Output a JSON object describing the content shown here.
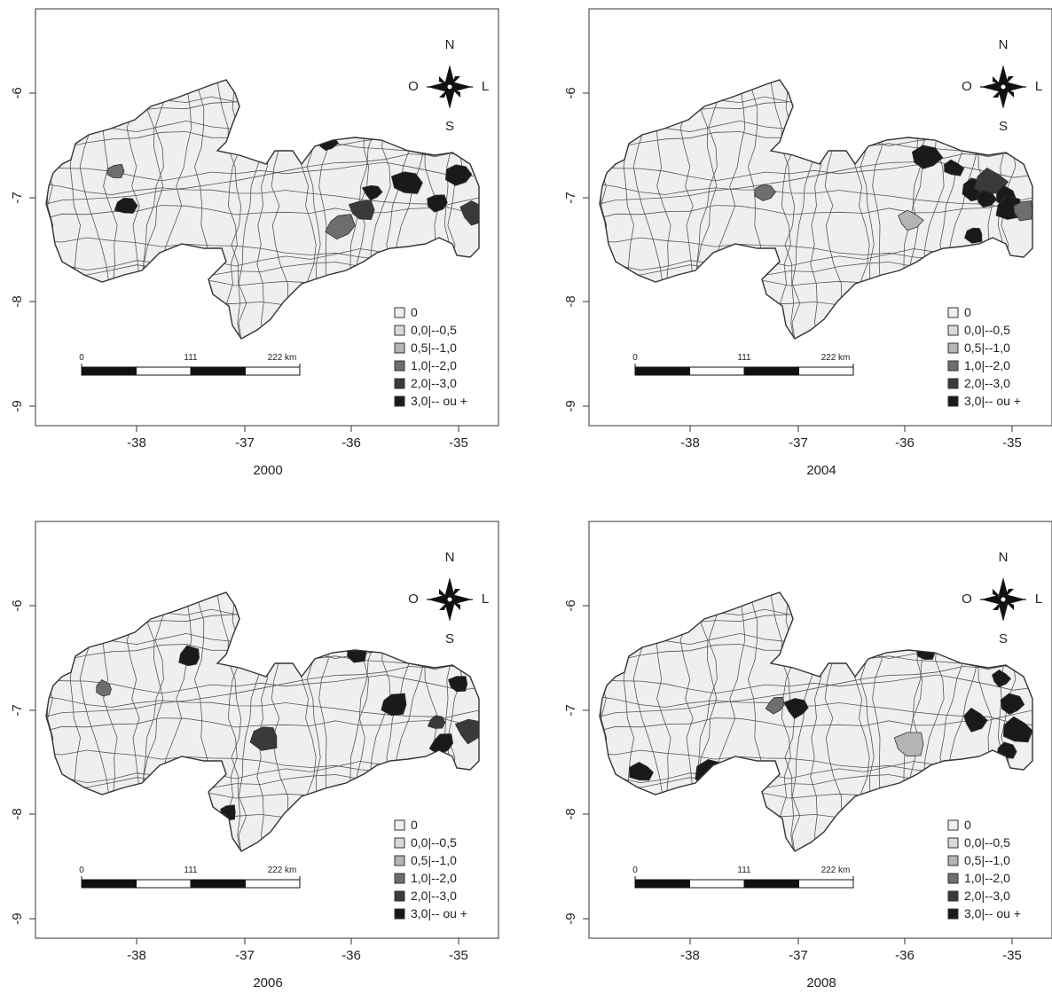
{
  "compass": {
    "north": "N",
    "south": "S",
    "west": "O",
    "east": "L"
  },
  "scale_bar": {
    "ticks": [
      "0",
      "111",
      "222 km"
    ]
  },
  "legend": {
    "classes": [
      {
        "label": "0",
        "color": "#efefef"
      },
      {
        "label": "0,0|--0,5",
        "color": "#d9d9d9"
      },
      {
        "label": "0,5|--1,0",
        "color": "#b4b4b4"
      },
      {
        "label": "1,0|--2,0",
        "color": "#6e6e6e"
      },
      {
        "label": "2,0|--3,0",
        "color": "#3a3a3a"
      },
      {
        "label": "3,0|-- ou +",
        "color": "#1a1a1a"
      }
    ]
  },
  "axes": {
    "x_ticks": [
      "-38",
      "-37",
      "-36",
      "-35"
    ],
    "y_ticks": [
      "-6",
      "-7",
      "-8",
      "-9"
    ]
  },
  "panels": [
    {
      "year": "2000",
      "highlights": [
        {
          "lon": -38.2,
          "lat": -6.75,
          "cls": 3
        },
        {
          "lon": -38.1,
          "lat": -7.08,
          "cls": 5
        },
        {
          "lon": -36.1,
          "lat": -7.27,
          "cls": 3
        },
        {
          "lon": -35.8,
          "lat": -6.95,
          "cls": 5
        },
        {
          "lon": -35.9,
          "lat": -7.12,
          "cls": 4
        },
        {
          "lon": -35.48,
          "lat": -6.86,
          "cls": 5
        },
        {
          "lon": -35.2,
          "lat": -7.05,
          "cls": 5
        },
        {
          "lon": -35.0,
          "lat": -6.78,
          "cls": 5
        },
        {
          "lon": -34.85,
          "lat": -7.15,
          "cls": 4
        },
        {
          "lon": -36.22,
          "lat": -6.48,
          "cls": 5
        }
      ]
    },
    {
      "year": "2004",
      "highlights": [
        {
          "lon": -37.3,
          "lat": -6.95,
          "cls": 3
        },
        {
          "lon": -35.95,
          "lat": -7.22,
          "cls": 2
        },
        {
          "lon": -35.8,
          "lat": -6.62,
          "cls": 5
        },
        {
          "lon": -35.55,
          "lat": -6.72,
          "cls": 5
        },
        {
          "lon": -35.35,
          "lat": -6.92,
          "cls": 5
        },
        {
          "lon": -35.2,
          "lat": -6.85,
          "cls": 4
        },
        {
          "lon": -35.25,
          "lat": -7.02,
          "cls": 5
        },
        {
          "lon": -35.05,
          "lat": -7.0,
          "cls": 5
        },
        {
          "lon": -35.02,
          "lat": -7.12,
          "cls": 5
        },
        {
          "lon": -35.35,
          "lat": -7.35,
          "cls": 5
        },
        {
          "lon": -34.9,
          "lat": -7.12,
          "cls": 3
        }
      ]
    },
    {
      "year": "2006",
      "highlights": [
        {
          "lon": -38.3,
          "lat": -6.8,
          "cls": 3
        },
        {
          "lon": -37.5,
          "lat": -6.5,
          "cls": 5
        },
        {
          "lon": -36.8,
          "lat": -7.25,
          "cls": 4
        },
        {
          "lon": -37.15,
          "lat": -7.98,
          "cls": 5
        },
        {
          "lon": -35.95,
          "lat": -6.45,
          "cls": 5
        },
        {
          "lon": -35.6,
          "lat": -6.95,
          "cls": 5
        },
        {
          "lon": -35.2,
          "lat": -7.12,
          "cls": 4
        },
        {
          "lon": -35.15,
          "lat": -7.32,
          "cls": 5
        },
        {
          "lon": -34.88,
          "lat": -7.2,
          "cls": 4
        },
        {
          "lon": -35.0,
          "lat": -6.75,
          "cls": 5
        }
      ]
    },
    {
      "year": "2008",
      "highlights": [
        {
          "lon": -37.2,
          "lat": -6.95,
          "cls": 3
        },
        {
          "lon": -37.0,
          "lat": -6.98,
          "cls": 5
        },
        {
          "lon": -35.95,
          "lat": -7.33,
          "cls": 2
        },
        {
          "lon": -35.8,
          "lat": -6.45,
          "cls": 5
        },
        {
          "lon": -38.45,
          "lat": -7.6,
          "cls": 5
        },
        {
          "lon": -37.8,
          "lat": -7.6,
          "cls": 5
        },
        {
          "lon": -35.1,
          "lat": -6.7,
          "cls": 5
        },
        {
          "lon": -35.0,
          "lat": -6.95,
          "cls": 5
        },
        {
          "lon": -34.95,
          "lat": -7.2,
          "cls": 5
        },
        {
          "lon": -35.05,
          "lat": -7.4,
          "cls": 5
        },
        {
          "lon": -35.35,
          "lat": -7.1,
          "cls": 5
        }
      ]
    }
  ]
}
